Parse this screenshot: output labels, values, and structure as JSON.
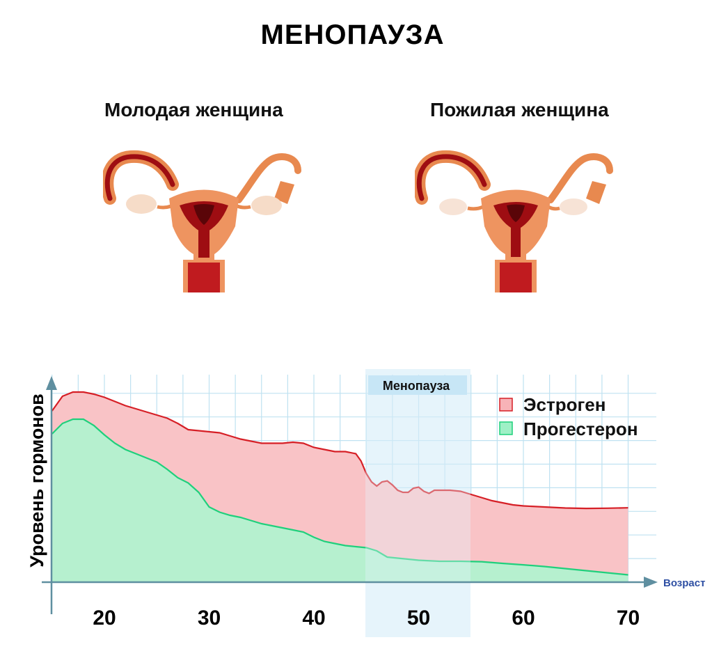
{
  "header": {
    "title": "МЕНОПАУЗА",
    "young_label": "Молодая женщина",
    "old_label": "Пожилая женщина"
  },
  "chart_data": {
    "type": "area",
    "title": "",
    "xlabel": "Возраст",
    "ylabel": "Уровень гормонов",
    "xlim": [
      15,
      70
    ],
    "ylim": [
      0,
      100
    ],
    "x_ticks": [
      20,
      30,
      40,
      50,
      60,
      70
    ],
    "grid": true,
    "legend_position": "top-right",
    "highlight_band": {
      "label": "Менопауза",
      "x_range": [
        45,
        55
      ]
    },
    "series": [
      {
        "name": "Эстроген",
        "fill": "#f9c3c6",
        "line": "#d61f26",
        "points": [
          [
            15,
            82
          ],
          [
            16,
            89
          ],
          [
            17,
            91
          ],
          [
            18,
            91
          ],
          [
            19,
            90
          ],
          [
            20,
            88.5
          ],
          [
            21,
            86.5
          ],
          [
            22,
            84.5
          ],
          [
            23,
            83
          ],
          [
            24,
            81.5
          ],
          [
            25,
            80
          ],
          [
            26,
            78.5
          ],
          [
            27,
            76
          ],
          [
            28,
            73
          ],
          [
            29,
            72.5
          ],
          [
            30,
            72
          ],
          [
            31,
            71.5
          ],
          [
            32,
            70
          ],
          [
            33,
            68.5
          ],
          [
            34,
            67.5
          ],
          [
            35,
            66.5
          ],
          [
            36,
            66.5
          ],
          [
            37,
            66.5
          ],
          [
            38,
            67
          ],
          [
            39,
            66.5
          ],
          [
            40,
            64.5
          ],
          [
            41,
            63.5
          ],
          [
            42,
            62.5
          ],
          [
            43,
            62.5
          ],
          [
            44,
            61.5
          ],
          [
            44.5,
            58
          ],
          [
            45,
            52
          ],
          [
            45.5,
            48
          ],
          [
            46,
            46
          ],
          [
            46.5,
            48
          ],
          [
            47,
            48.5
          ],
          [
            47.5,
            46.5
          ],
          [
            48,
            44
          ],
          [
            48.5,
            43
          ],
          [
            49,
            43
          ],
          [
            49.5,
            45
          ],
          [
            50,
            45.5
          ],
          [
            50.5,
            43.5
          ],
          [
            51,
            42.5
          ],
          [
            51.5,
            44
          ],
          [
            52,
            44
          ],
          [
            53,
            44
          ],
          [
            54,
            43.5
          ],
          [
            55,
            42
          ],
          [
            56,
            40.5
          ],
          [
            57,
            39
          ],
          [
            58,
            38
          ],
          [
            59,
            37
          ],
          [
            60,
            36.5
          ],
          [
            62,
            36
          ],
          [
            64,
            35.5
          ],
          [
            66,
            35.3
          ],
          [
            68,
            35.4
          ],
          [
            70,
            35.6
          ]
        ]
      },
      {
        "name": "Прогестерон",
        "fill": "#b6f0cf",
        "line": "#1fd07c",
        "points": [
          [
            15,
            71
          ],
          [
            16,
            76
          ],
          [
            17,
            78
          ],
          [
            18,
            78
          ],
          [
            19,
            75
          ],
          [
            20,
            70.5
          ],
          [
            21,
            66.5
          ],
          [
            22,
            63.5
          ],
          [
            23,
            61.5
          ],
          [
            24,
            59.5
          ],
          [
            25,
            57.5
          ],
          [
            26,
            54
          ],
          [
            27,
            50
          ],
          [
            28,
            47.5
          ],
          [
            29,
            43
          ],
          [
            30,
            36
          ],
          [
            31,
            33.5
          ],
          [
            32,
            32
          ],
          [
            33,
            31
          ],
          [
            34,
            29.5
          ],
          [
            35,
            28
          ],
          [
            36,
            27
          ],
          [
            37,
            26
          ],
          [
            38,
            25
          ],
          [
            39,
            24
          ],
          [
            40,
            21.5
          ],
          [
            41,
            19.5
          ],
          [
            42,
            18.5
          ],
          [
            43,
            17.5
          ],
          [
            44,
            17
          ],
          [
            45,
            16.5
          ],
          [
            46,
            15
          ],
          [
            47,
            12
          ],
          [
            48,
            11.5
          ],
          [
            49,
            11
          ],
          [
            50,
            10.5
          ],
          [
            52,
            10
          ],
          [
            54,
            10
          ],
          [
            56,
            9.8
          ],
          [
            58,
            9
          ],
          [
            60,
            8.3
          ],
          [
            62,
            7.5
          ],
          [
            64,
            6.5
          ],
          [
            66,
            5.5
          ],
          [
            68,
            4.5
          ],
          [
            70,
            3.5
          ]
        ]
      }
    ]
  }
}
